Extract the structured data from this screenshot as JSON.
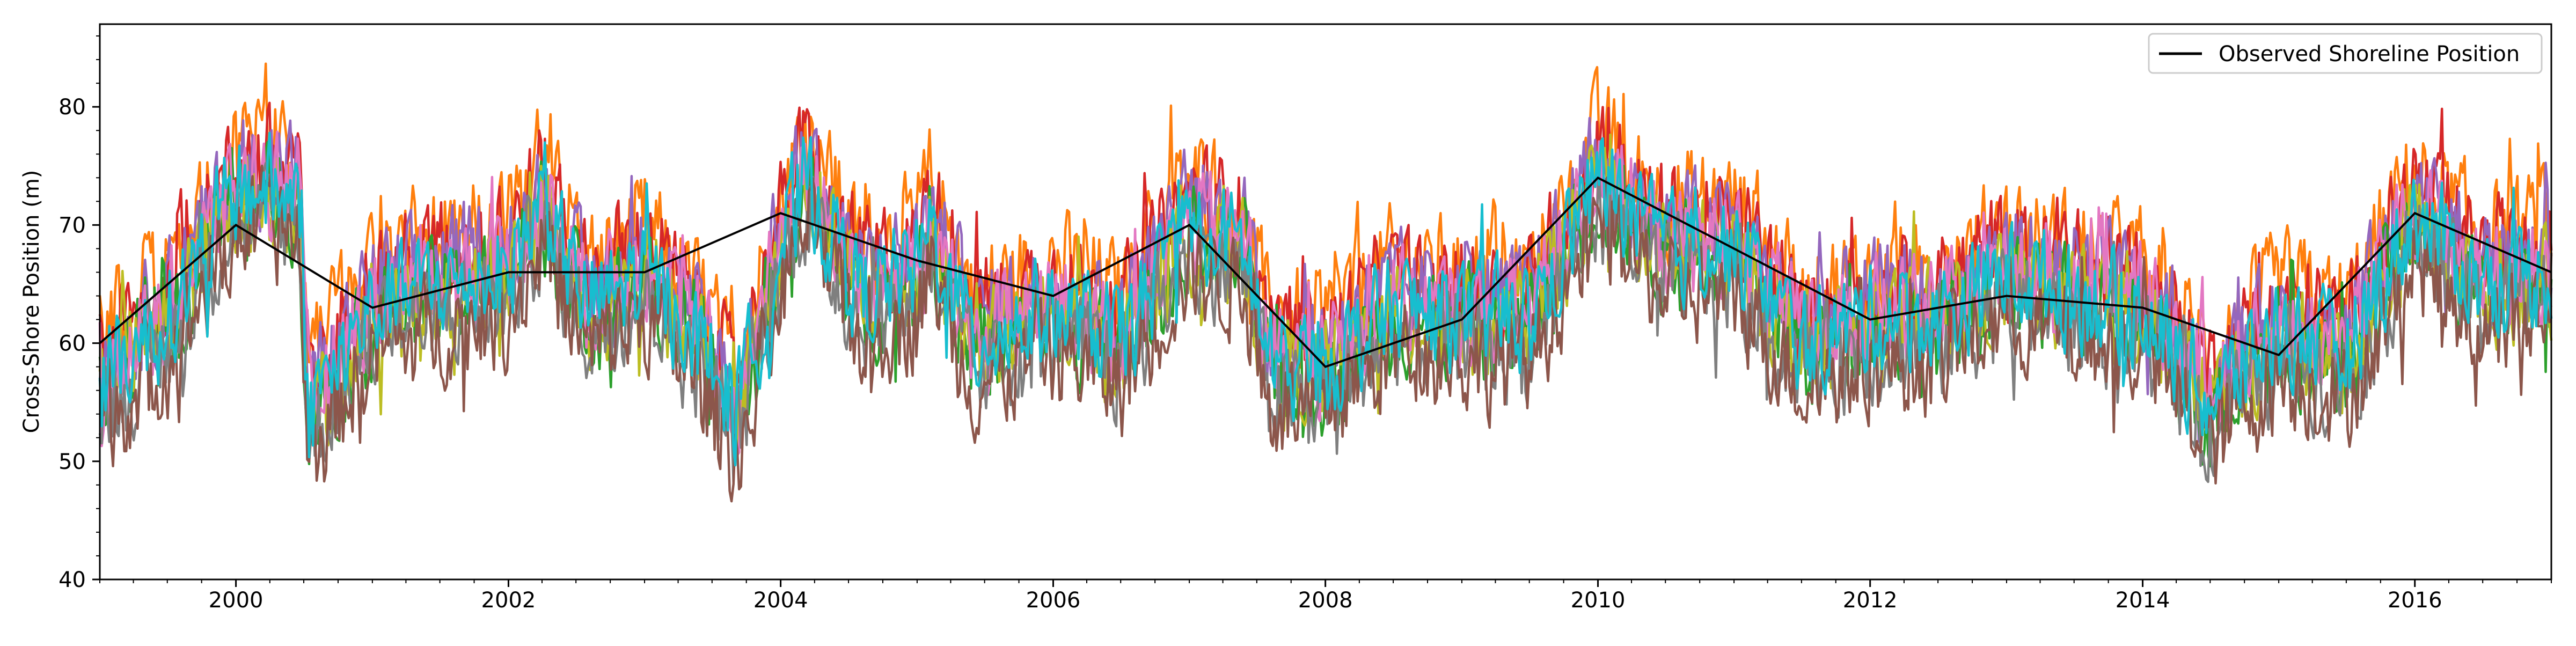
{
  "chart_data": {
    "type": "line",
    "title": "",
    "xlabel": "",
    "ylabel": "Cross-Shore Position (m)",
    "xlim": [
      "1999-01-01",
      "2017-01-01"
    ],
    "ylim": [
      40,
      87
    ],
    "grid": false,
    "x_ticks": [
      "2000",
      "2002",
      "2004",
      "2006",
      "2008",
      "2010",
      "2012",
      "2014",
      "2016"
    ],
    "y_ticks": [
      40,
      50,
      60,
      70,
      80
    ],
    "legend": {
      "position": "top-right",
      "entries": [
        "Observed Shoreline Position"
      ]
    },
    "observed": {
      "name": "Observed Shoreline Position",
      "color": "#000000",
      "points": [
        [
          "1999-01-01",
          60
        ],
        [
          "2000-01-01",
          70
        ],
        [
          "2001-01-01",
          63
        ],
        [
          "2002-01-01",
          66
        ],
        [
          "2003-01-01",
          66
        ],
        [
          "2004-01-01",
          71
        ],
        [
          "2005-01-01",
          67
        ],
        [
          "2006-01-01",
          64
        ],
        [
          "2007-01-01",
          70
        ],
        [
          "2008-01-01",
          58
        ],
        [
          "2009-01-01",
          62
        ],
        [
          "2010-01-01",
          74
        ],
        [
          "2011-01-01",
          68
        ],
        [
          "2012-01-01",
          62
        ],
        [
          "2013-01-01",
          64
        ],
        [
          "2014-01-01",
          63
        ],
        [
          "2015-01-01",
          59
        ],
        [
          "2016-01-01",
          71
        ],
        [
          "2017-01-01",
          66
        ]
      ]
    },
    "ensemble": {
      "colors": [
        "#ff7f0e",
        "#d62728",
        "#9467bd",
        "#2ca02c",
        "#bcbd22",
        "#e377c2",
        "#7f7f7f",
        "#8c564b",
        "#17becf"
      ],
      "offsets": [
        4.0,
        2.5,
        1.8,
        -1.0,
        -0.6,
        0.6,
        -2.4,
        -3.6,
        0.0
      ],
      "anchors": [
        [
          "1999-01-01",
          57
        ],
        [
          "1999-07-01",
          62
        ],
        [
          "2000-01-01",
          73
        ],
        [
          "2000-06-15",
          73
        ],
        [
          "2000-07-15",
          54
        ],
        [
          "2001-01-01",
          63
        ],
        [
          "2001-07-01",
          65
        ],
        [
          "2002-01-01",
          66
        ],
        [
          "2002-04-01",
          72
        ],
        [
          "2002-08-01",
          63
        ],
        [
          "2003-01-01",
          66
        ],
        [
          "2003-06-01",
          60
        ],
        [
          "2003-09-01",
          54
        ],
        [
          "2004-01-01",
          68
        ],
        [
          "2004-03-01",
          74
        ],
        [
          "2004-08-01",
          64
        ],
        [
          "2005-01-01",
          66
        ],
        [
          "2005-02-01",
          70
        ],
        [
          "2005-06-01",
          60
        ],
        [
          "2006-01-01",
          63
        ],
        [
          "2006-07-01",
          60
        ],
        [
          "2007-01-01",
          70
        ],
        [
          "2007-06-01",
          68
        ],
        [
          "2007-08-01",
          58
        ],
        [
          "2008-01-01",
          58
        ],
        [
          "2008-07-01",
          63
        ],
        [
          "2009-01-01",
          62
        ],
        [
          "2009-07-01",
          62
        ],
        [
          "2010-01-01",
          74
        ],
        [
          "2010-07-01",
          68
        ],
        [
          "2011-01-01",
          68
        ],
        [
          "2011-07-01",
          60
        ],
        [
          "2012-01-01",
          62
        ],
        [
          "2012-07-01",
          62
        ],
        [
          "2013-01-01",
          66
        ],
        [
          "2013-07-01",
          64
        ],
        [
          "2014-01-01",
          63
        ],
        [
          "2014-07-01",
          55
        ],
        [
          "2015-01-01",
          61
        ],
        [
          "2015-07-01",
          59
        ],
        [
          "2016-01-01",
          71
        ],
        [
          "2016-07-01",
          65
        ],
        [
          "2017-01-01",
          66
        ]
      ]
    }
  }
}
